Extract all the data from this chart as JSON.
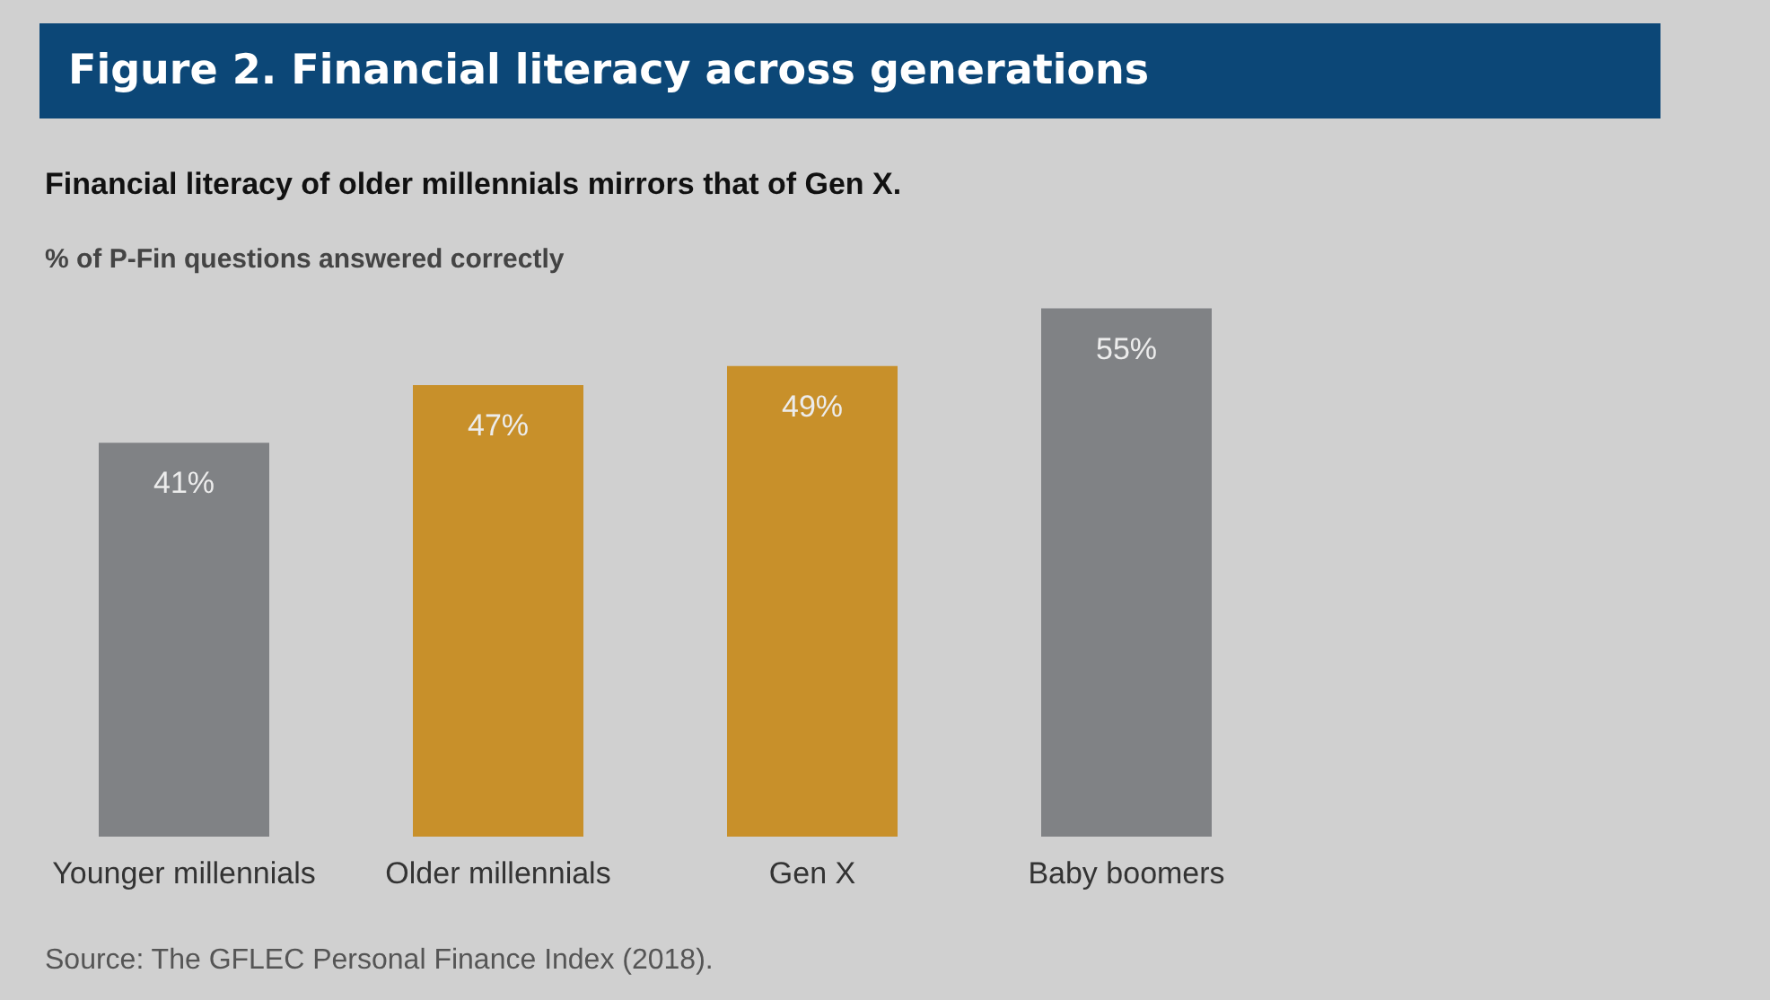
{
  "chart_data": {
    "type": "bar",
    "title": "Figure 2. Financial literacy across generations",
    "subtitle": "Financial literacy of older millennials mirrors that of Gen X.",
    "ylabel": "% of P-Fin questions answered correctly",
    "categories": [
      "Younger millennials",
      "Older millennials",
      "Gen X",
      "Baby boomers"
    ],
    "values": [
      41,
      47,
      49,
      55
    ],
    "colors": [
      "#808285",
      "#c8902a",
      "#c8902a",
      "#808285"
    ],
    "value_labels": [
      "41%",
      "47%",
      "49%",
      "55%"
    ],
    "annotations": [
      "Source: The GFLEC Personal Finance Index (2018)."
    ]
  }
}
